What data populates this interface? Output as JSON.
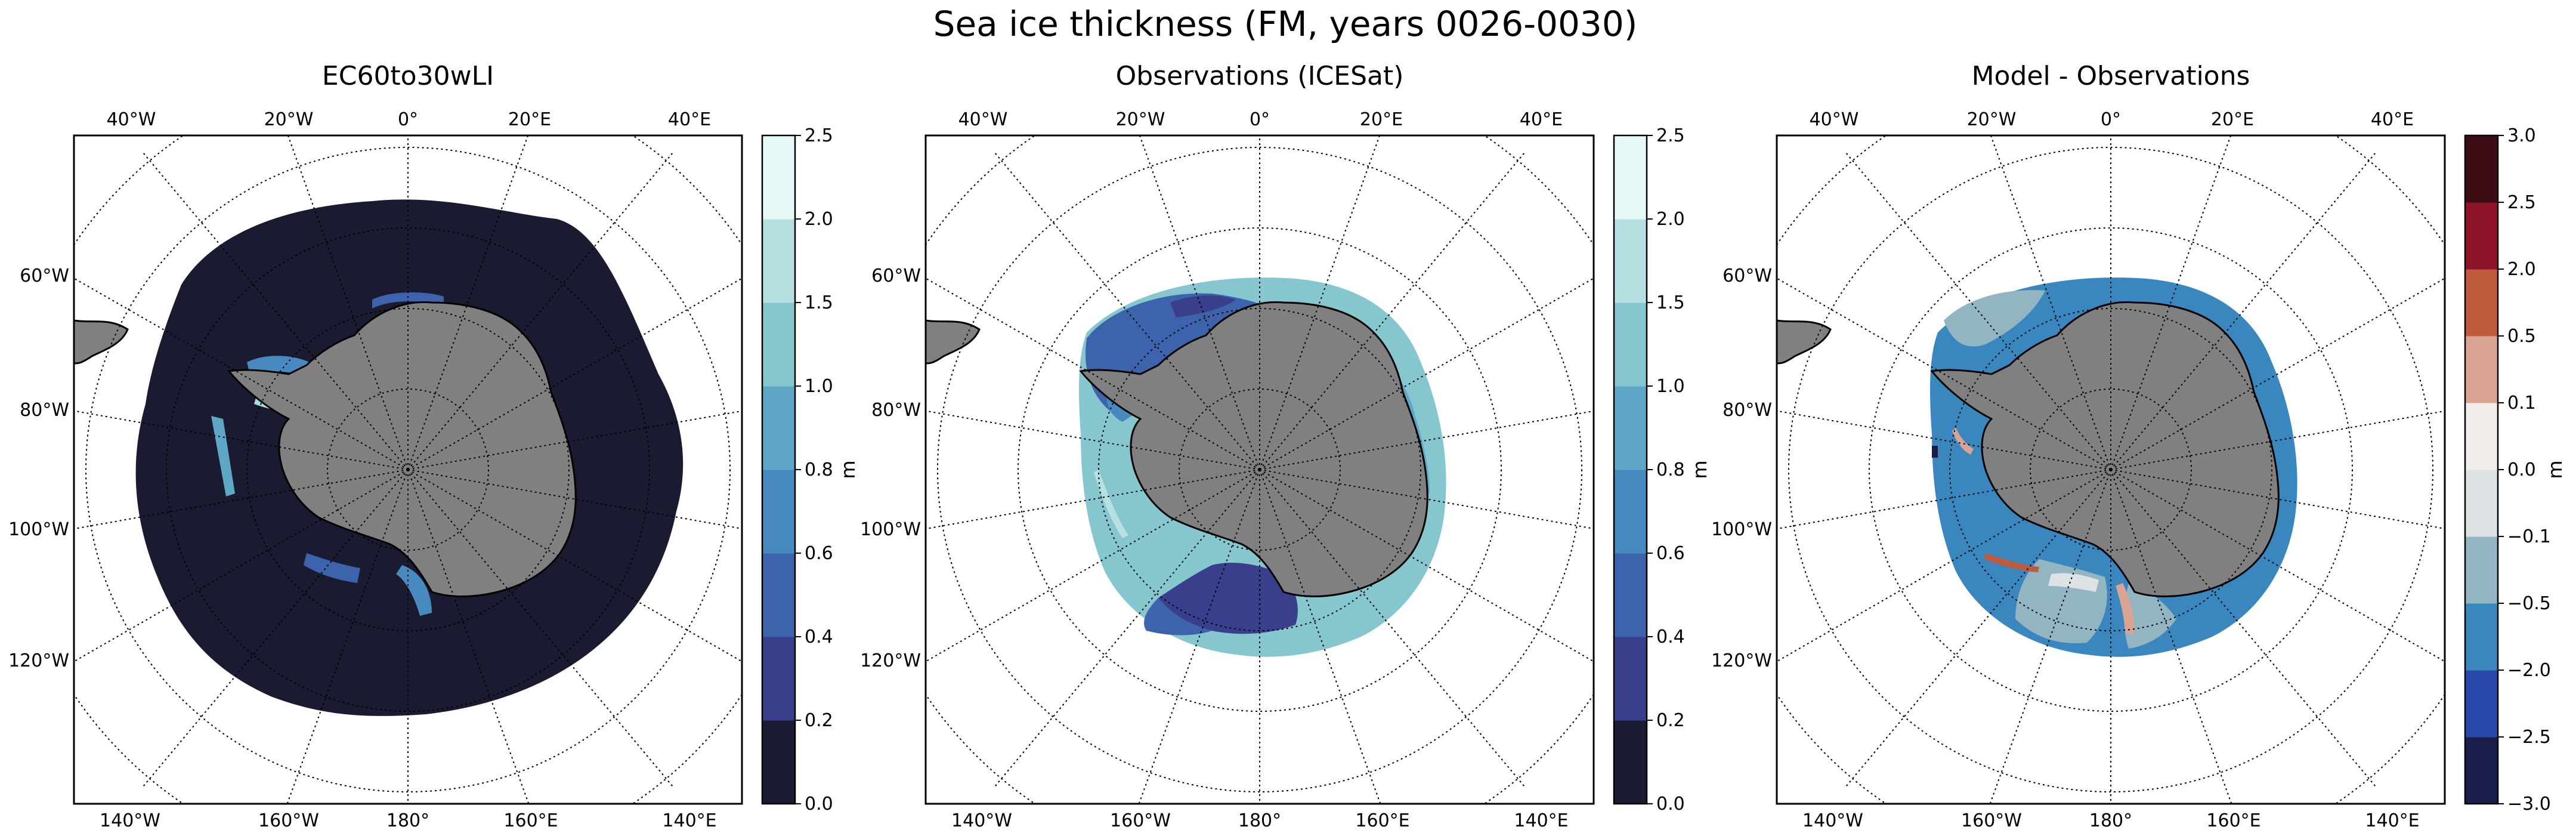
{
  "figure": {
    "suptitle": "Sea ice thickness (FM, years 0026-0030)"
  },
  "panels": [
    {
      "title": "EC60to30wLI",
      "kind": "model",
      "colorbar": {
        "label": "m",
        "ticks": [
          "0.0",
          "0.2",
          "0.4",
          "0.6",
          "0.8",
          "1.0",
          "1.5",
          "2.0",
          "2.5"
        ],
        "colors": [
          "#1b1b33",
          "#3a3f8c",
          "#3e63ad",
          "#4889c0",
          "#5ea7c7",
          "#85c6cf",
          "#b7e0e3",
          "#e5f9f9"
        ]
      }
    },
    {
      "title": "Observations (ICESat)",
      "kind": "obs",
      "colorbar": {
        "label": "m",
        "ticks": [
          "0.0",
          "0.2",
          "0.4",
          "0.6",
          "0.8",
          "1.0",
          "1.5",
          "2.0",
          "2.5"
        ],
        "colors": [
          "#1b1b33",
          "#3a3f8c",
          "#3e63ad",
          "#4889c0",
          "#5ea7c7",
          "#85c6cf",
          "#b7e0e3",
          "#e5f9f9"
        ]
      }
    },
    {
      "title": "Model - Observations",
      "kind": "diff",
      "colorbar": {
        "label": "m",
        "ticks": [
          "−3.0",
          "−2.5",
          "−2.0",
          "−0.5",
          "−0.1",
          "0.0",
          "0.1",
          "0.5",
          "2.0",
          "2.5",
          "3.0"
        ],
        "colors": [
          "#1a1d4a",
          "#2a4aab",
          "#3a86be",
          "#93b5c2",
          "#dde2e4",
          "#f1ebe9",
          "#d9a494",
          "#c05a3c",
          "#8e1329",
          "#3d0d16"
        ]
      }
    }
  ],
  "map": {
    "projection": "South polar stereographic",
    "longitude_labels_top": [
      "40°W",
      "20°W",
      "0°",
      "20°E",
      "40°E"
    ],
    "longitude_labels_bottom": [
      "140°W",
      "160°W",
      "180°",
      "160°E",
      "140°E"
    ],
    "latitude_labels_left": [
      "60°W",
      "80°W",
      "100°W",
      "120°W"
    ],
    "land_color": "#808080",
    "gridlines": true
  }
}
